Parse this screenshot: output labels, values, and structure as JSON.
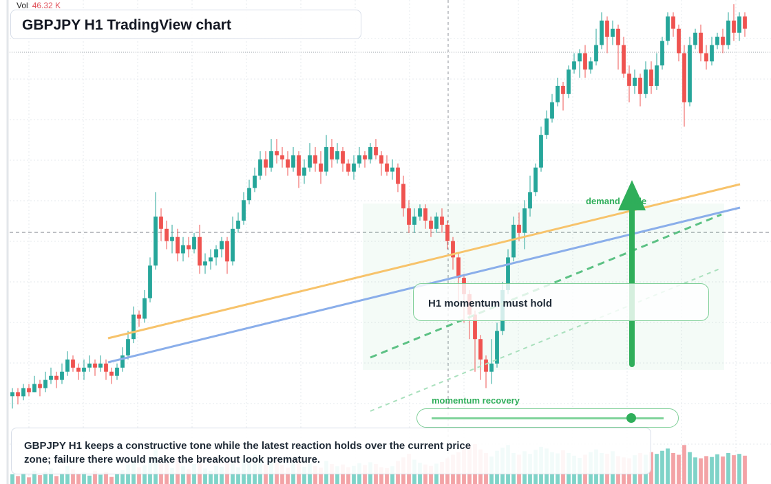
{
  "title": "GBPJPY H1 TradingView chart",
  "volume_legend": {
    "label": "Vol",
    "value": "46.32 K"
  },
  "annotations": {
    "callout": "H1 momentum must hold",
    "demand_tag": "demand guide",
    "momentum_tag": "momentum recovery",
    "momentum_level": 0.86
  },
  "caption": "GBPJPY H1 keeps a constructive tone while the latest reaction holds over the current price zone; failure there would make the breakout look premature.",
  "colors": {
    "up": "#26a69a",
    "down": "#ef5350",
    "accent": "#2fae5a",
    "trend_orange": "#f7c36b",
    "trend_blue": "#8aaeea"
  },
  "chart_data": {
    "type": "candlestick",
    "ylim": [
      0,
      100
    ],
    "candles": [
      [
        6,
        7,
        3,
        8
      ],
      [
        7,
        6,
        4,
        8
      ],
      [
        6,
        8,
        5,
        9
      ],
      [
        8,
        7,
        6,
        9
      ],
      [
        7,
        9,
        7,
        11
      ],
      [
        9,
        8,
        6,
        10
      ],
      [
        8,
        10,
        7,
        12
      ],
      [
        10,
        11,
        9,
        13
      ],
      [
        11,
        10,
        8,
        12
      ],
      [
        10,
        12,
        9,
        14
      ],
      [
        12,
        15,
        11,
        17
      ],
      [
        15,
        13,
        12,
        16
      ],
      [
        13,
        12,
        10,
        14
      ],
      [
        12,
        13,
        10,
        15
      ],
      [
        13,
        14,
        12,
        16
      ],
      [
        14,
        13,
        11,
        15
      ],
      [
        13,
        14,
        12,
        16
      ],
      [
        14,
        12,
        10,
        15
      ],
      [
        12,
        11,
        9,
        13
      ],
      [
        11,
        13,
        10,
        14
      ],
      [
        13,
        16,
        12,
        18
      ],
      [
        16,
        20,
        15,
        22
      ],
      [
        20,
        26,
        19,
        28
      ],
      [
        26,
        25,
        23,
        27
      ],
      [
        25,
        30,
        24,
        32
      ],
      [
        30,
        38,
        29,
        40
      ],
      [
        38,
        50,
        37,
        56
      ],
      [
        50,
        47,
        44,
        52
      ],
      [
        47,
        44,
        42,
        49
      ],
      [
        44,
        45,
        41,
        48
      ],
      [
        45,
        41,
        39,
        47
      ],
      [
        41,
        43,
        39,
        45
      ],
      [
        43,
        42,
        40,
        45
      ],
      [
        42,
        45,
        41,
        46
      ],
      [
        45,
        38,
        36,
        48
      ],
      [
        38,
        39,
        36,
        41
      ],
      [
        39,
        40,
        37,
        42
      ],
      [
        40,
        42,
        38,
        43
      ],
      [
        42,
        44,
        40,
        45
      ],
      [
        44,
        39,
        36,
        45
      ],
      [
        39,
        47,
        38,
        50
      ],
      [
        47,
        49,
        46,
        51
      ],
      [
        49,
        54,
        48,
        56
      ],
      [
        54,
        57,
        53,
        59
      ],
      [
        57,
        60,
        56,
        62
      ],
      [
        60,
        64,
        59,
        66
      ],
      [
        64,
        62,
        60,
        66
      ],
      [
        62,
        66,
        61,
        69
      ],
      [
        66,
        65,
        63,
        69
      ],
      [
        65,
        64,
        62,
        67
      ],
      [
        64,
        62,
        60,
        66
      ],
      [
        62,
        65,
        61,
        67
      ],
      [
        65,
        60,
        57,
        66
      ],
      [
        60,
        62,
        58,
        64
      ],
      [
        62,
        65,
        61,
        68
      ],
      [
        65,
        63,
        61,
        67
      ],
      [
        63,
        61,
        58,
        66
      ],
      [
        61,
        67,
        60,
        70
      ],
      [
        67,
        64,
        62,
        69
      ],
      [
        64,
        66,
        63,
        68
      ],
      [
        66,
        63,
        61,
        67
      ],
      [
        63,
        61,
        60,
        64
      ],
      [
        61,
        63,
        59,
        65
      ],
      [
        63,
        65,
        62,
        67
      ],
      [
        65,
        64,
        62,
        66
      ],
      [
        64,
        67,
        63,
        68
      ],
      [
        67,
        65,
        64,
        69
      ],
      [
        65,
        63,
        60,
        66
      ],
      [
        63,
        61,
        60,
        65
      ],
      [
        61,
        62,
        59,
        64
      ],
      [
        62,
        58,
        56,
        63
      ],
      [
        58,
        52,
        50,
        60
      ],
      [
        52,
        48,
        46,
        54
      ],
      [
        48,
        50,
        46,
        52
      ],
      [
        50,
        52,
        49,
        53
      ],
      [
        52,
        49,
        47,
        53
      ],
      [
        49,
        47,
        45,
        50
      ],
      [
        47,
        50,
        46,
        51
      ],
      [
        50,
        48,
        46,
        52
      ],
      [
        48,
        44,
        42,
        49
      ],
      [
        44,
        40,
        37,
        45
      ],
      [
        40,
        35,
        28,
        41
      ],
      [
        35,
        31,
        24,
        36
      ],
      [
        31,
        26,
        20,
        32
      ],
      [
        26,
        20,
        12,
        27
      ],
      [
        20,
        15,
        10,
        21
      ],
      [
        15,
        12,
        8,
        16
      ],
      [
        12,
        14,
        9,
        20
      ],
      [
        14,
        22,
        13,
        24
      ],
      [
        22,
        32,
        21,
        34
      ],
      [
        32,
        40,
        31,
        42
      ],
      [
        40,
        48,
        39,
        50
      ],
      [
        48,
        46,
        44,
        51
      ],
      [
        46,
        52,
        42,
        54
      ],
      [
        52,
        56,
        50,
        60
      ],
      [
        56,
        62,
        55,
        63
      ],
      [
        62,
        70,
        61,
        72
      ],
      [
        70,
        74,
        69,
        76
      ],
      [
        74,
        78,
        73,
        80
      ],
      [
        78,
        82,
        77,
        84
      ],
      [
        82,
        80,
        76,
        83
      ],
      [
        80,
        86,
        79,
        87
      ],
      [
        86,
        88,
        85,
        90
      ],
      [
        88,
        90,
        84,
        91
      ],
      [
        90,
        86,
        84,
        92
      ],
      [
        86,
        88,
        85,
        89
      ],
      [
        88,
        92,
        87,
        96
      ],
      [
        92,
        98,
        91,
        100
      ],
      [
        98,
        94,
        90,
        99
      ],
      [
        94,
        96,
        92,
        98
      ],
      [
        96,
        92,
        86,
        97
      ],
      [
        92,
        85,
        84,
        94
      ],
      [
        85,
        82,
        78,
        87
      ],
      [
        82,
        84,
        80,
        86
      ],
      [
        84,
        80,
        77,
        85
      ],
      [
        80,
        86,
        79,
        88
      ],
      [
        86,
        82,
        80,
        88
      ],
      [
        82,
        87,
        81,
        90
      ],
      [
        87,
        93,
        86,
        94
      ],
      [
        93,
        99,
        92,
        100
      ],
      [
        99,
        96,
        94,
        100
      ],
      [
        96,
        90,
        88,
        97
      ],
      [
        90,
        78,
        72,
        92
      ],
      [
        78,
        92,
        77,
        94
      ],
      [
        92,
        95,
        91,
        96
      ],
      [
        95,
        90,
        88,
        97
      ],
      [
        90,
        88,
        86,
        92
      ],
      [
        88,
        92,
        87,
        94
      ],
      [
        92,
        94,
        91,
        95
      ],
      [
        94,
        92,
        90,
        96
      ],
      [
        92,
        98,
        91,
        100
      ],
      [
        98,
        95,
        93,
        102
      ],
      [
        95,
        99,
        93,
        100
      ],
      [
        99,
        96,
        94,
        100
      ]
    ],
    "volume": [
      22,
      18,
      25,
      15,
      30,
      20,
      28,
      35,
      18,
      24,
      40,
      33,
      22,
      26,
      19,
      30,
      21,
      27,
      16,
      23,
      31,
      44,
      50,
      38,
      42,
      61,
      77,
      55,
      48,
      36,
      58,
      40,
      33,
      45,
      62,
      35,
      30,
      41,
      39,
      52,
      47,
      38,
      56,
      60,
      66,
      58,
      44,
      50,
      49,
      43,
      37,
      48,
      55,
      39,
      46,
      41,
      37,
      52,
      45,
      40,
      44,
      38,
      41,
      47,
      43,
      49,
      45,
      38,
      36,
      40,
      52,
      60,
      68,
      55,
      48,
      44,
      41,
      46,
      50,
      58,
      66,
      72,
      80,
      85,
      90,
      78,
      70,
      62,
      75,
      82,
      88,
      70,
      66,
      74,
      68,
      77,
      84,
      80,
      72,
      69,
      76,
      70,
      64,
      59,
      66,
      72,
      78,
      70,
      68,
      74,
      63,
      60,
      58,
      65,
      70,
      66,
      72,
      68,
      75,
      80,
      70,
      66,
      88,
      72,
      60,
      58,
      63,
      61,
      67,
      62,
      70,
      65,
      68,
      64
    ]
  }
}
